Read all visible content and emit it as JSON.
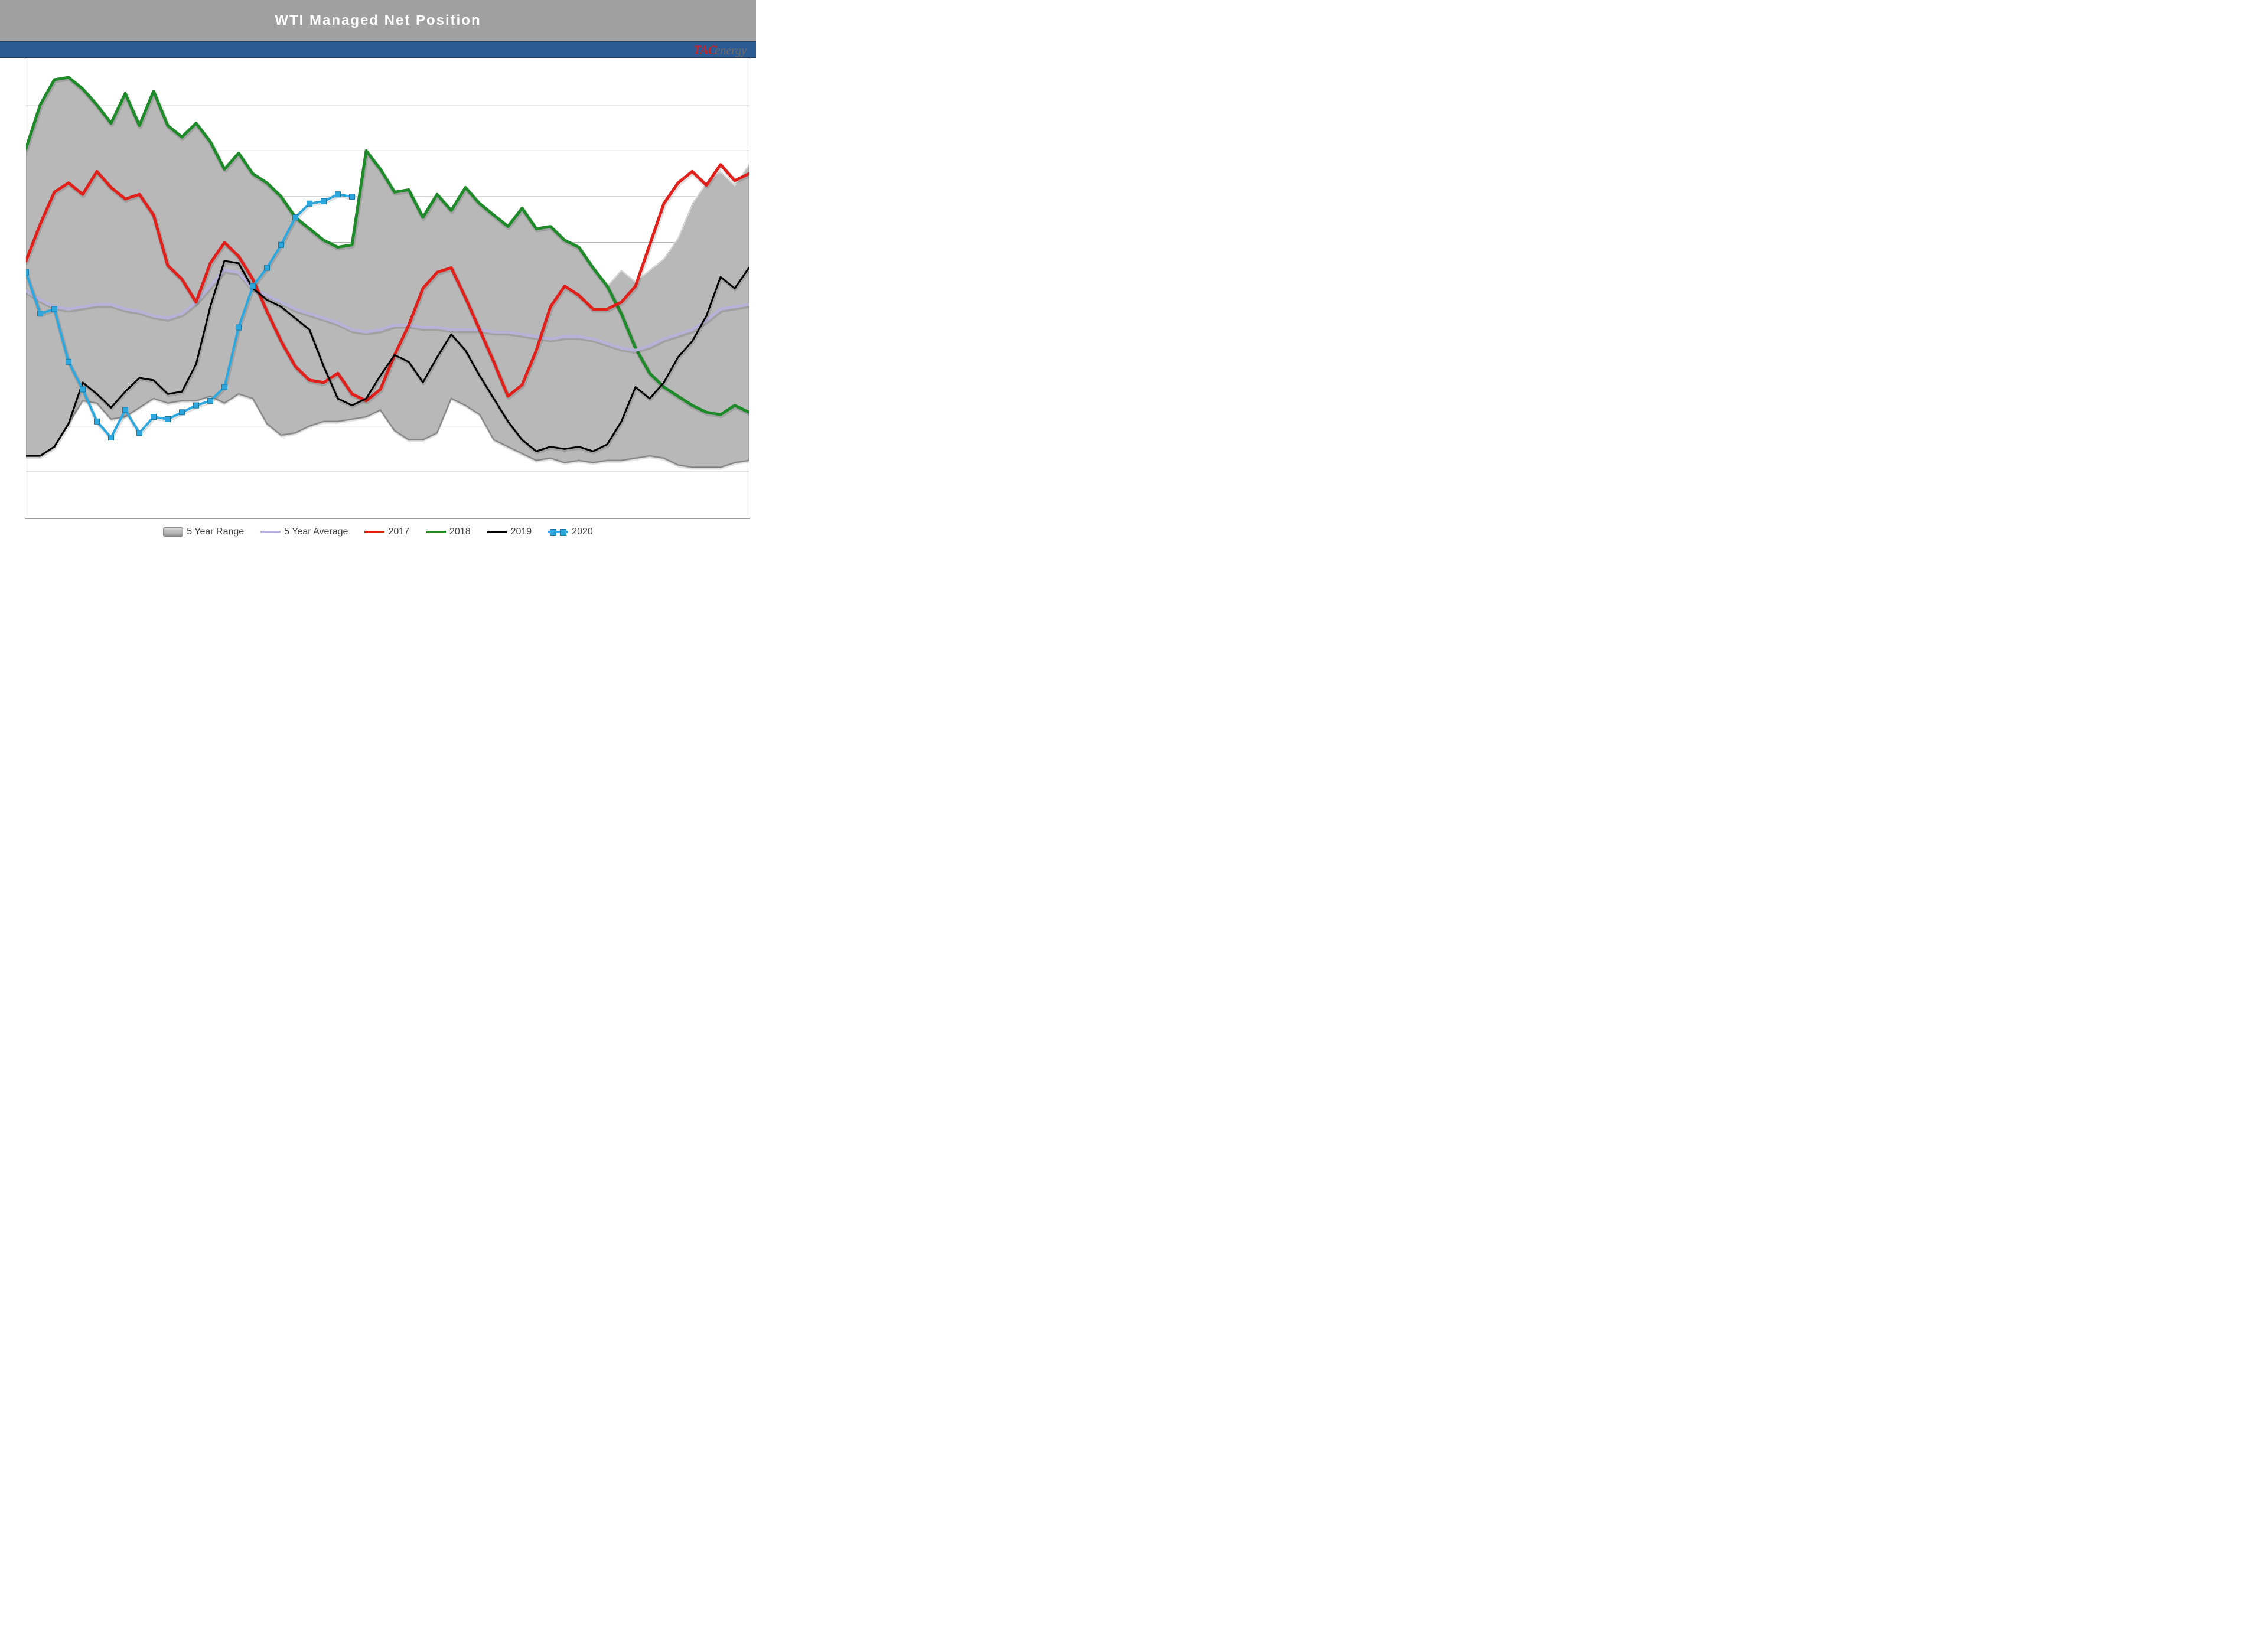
{
  "title": "WTI Managed Net Position",
  "logo": {
    "tac": "TAC",
    "energy": "energy"
  },
  "chart": {
    "type": "line",
    "background_color": "#ffffff",
    "title_bar_color": "#a0a0a0",
    "title_font_color": "#ffffff",
    "title_fontsize": 24,
    "strip_color": "#2c5b94",
    "plot_border_color": "#9a9a9a",
    "grid_color": "#9a9a9a",
    "x_points": 52,
    "ylim": [
      0,
      10
    ],
    "y_gridlines": [
      1,
      2,
      3,
      4,
      5,
      6,
      7,
      8,
      9
    ],
    "range_fill": "#b8b8b8",
    "range_edge": "#8a8a8a",
    "series": {
      "range_upper": [
        8.05,
        9.0,
        9.55,
        9.6,
        9.35,
        9.0,
        8.6,
        9.25,
        8.55,
        9.3,
        8.55,
        8.3,
        8.6,
        8.2,
        7.6,
        7.95,
        7.5,
        7.3,
        7.0,
        6.55,
        6.3,
        6.05,
        5.9,
        5.95,
        8.0,
        7.6,
        7.1,
        7.15,
        6.55,
        7.05,
        6.7,
        7.2,
        6.85,
        6.6,
        6.35,
        6.75,
        6.3,
        6.35,
        6.05,
        5.9,
        5.45,
        5.05,
        5.4,
        5.15,
        5.4,
        5.65,
        6.1,
        6.85,
        7.3,
        7.55,
        7.25,
        7.7
      ],
      "range_lower": [
        1.35,
        1.35,
        1.55,
        2.05,
        2.55,
        2.5,
        2.15,
        2.2,
        2.4,
        2.6,
        2.5,
        2.55,
        2.55,
        2.65,
        2.5,
        2.7,
        2.6,
        2.05,
        1.8,
        1.85,
        2.0,
        2.1,
        2.1,
        2.15,
        2.2,
        2.35,
        1.9,
        1.7,
        1.7,
        1.85,
        2.6,
        2.45,
        2.25,
        1.7,
        1.55,
        1.4,
        1.25,
        1.3,
        1.2,
        1.25,
        1.2,
        1.25,
        1.25,
        1.3,
        1.35,
        1.3,
        1.15,
        1.1,
        1.1,
        1.1,
        1.2,
        1.25
      ],
      "average": {
        "color": "#b6b2d8",
        "width": 5,
        "values": [
          4.95,
          4.75,
          4.6,
          4.55,
          4.6,
          4.65,
          4.65,
          4.55,
          4.5,
          4.4,
          4.35,
          4.45,
          4.7,
          5.05,
          5.4,
          5.35,
          5.0,
          4.85,
          4.7,
          4.55,
          4.45,
          4.35,
          4.25,
          4.1,
          4.05,
          4.1,
          4.2,
          4.2,
          4.15,
          4.15,
          4.1,
          4.1,
          4.1,
          4.05,
          4.05,
          4.0,
          3.95,
          3.9,
          3.95,
          3.95,
          3.9,
          3.8,
          3.7,
          3.65,
          3.75,
          3.9,
          4.0,
          4.1,
          4.3,
          4.55,
          4.6,
          4.65
        ]
      },
      "y2017": {
        "color": "#e1201b",
        "width": 5,
        "values": [
          5.6,
          6.4,
          7.1,
          7.3,
          7.05,
          7.55,
          7.2,
          6.95,
          7.05,
          6.6,
          5.5,
          5.2,
          4.7,
          5.55,
          6.0,
          5.7,
          5.2,
          4.5,
          3.85,
          3.3,
          3.0,
          2.95,
          3.15,
          2.7,
          2.55,
          2.8,
          3.55,
          4.2,
          5.0,
          5.35,
          5.45,
          4.8,
          4.1,
          3.4,
          2.65,
          2.9,
          3.65,
          4.6,
          5.05,
          4.85,
          4.55,
          4.55,
          4.7,
          5.05,
          5.95,
          6.85,
          7.3,
          7.55,
          7.25,
          7.7,
          7.35,
          7.5
        ]
      },
      "y2018": {
        "color": "#1f8a2a",
        "width": 5,
        "values": [
          8.05,
          9.0,
          9.55,
          9.6,
          9.35,
          9.0,
          8.6,
          9.25,
          8.55,
          9.3,
          8.55,
          8.3,
          8.6,
          8.2,
          7.6,
          7.95,
          7.5,
          7.3,
          7.0,
          6.55,
          6.3,
          6.05,
          5.9,
          5.95,
          8.0,
          7.6,
          7.1,
          7.15,
          6.55,
          7.05,
          6.7,
          7.2,
          6.85,
          6.6,
          6.35,
          6.75,
          6.3,
          6.35,
          6.05,
          5.9,
          5.45,
          5.05,
          4.45,
          3.7,
          3.15,
          2.85,
          2.65,
          2.45,
          2.3,
          2.25,
          2.45,
          2.3
        ]
      },
      "y2019": {
        "color": "#000000",
        "width": 3,
        "values": [
          1.35,
          1.35,
          1.55,
          2.05,
          2.95,
          2.7,
          2.4,
          2.75,
          3.05,
          3.0,
          2.7,
          2.75,
          3.35,
          4.6,
          5.6,
          5.55,
          5.0,
          4.75,
          4.6,
          4.35,
          4.1,
          3.3,
          2.6,
          2.45,
          2.6,
          3.1,
          3.55,
          3.4,
          2.95,
          3.5,
          4.0,
          3.65,
          3.1,
          2.6,
          2.1,
          1.7,
          1.45,
          1.55,
          1.5,
          1.55,
          1.45,
          1.6,
          2.1,
          2.85,
          2.6,
          2.95,
          3.5,
          3.85,
          4.4,
          5.25,
          5.0,
          5.45
        ]
      },
      "y2020": {
        "color": "#2ca8df",
        "width": 4,
        "marker": "square",
        "marker_size": 9,
        "marker_fill": "#2ca8df",
        "marker_border": "#1a7aa6",
        "values": [
          5.35,
          4.45,
          4.55,
          3.4,
          2.8,
          2.1,
          1.75,
          2.35,
          1.85,
          2.2,
          2.15,
          2.3,
          2.45,
          2.55,
          2.85,
          4.15,
          5.05,
          5.45,
          5.95,
          6.55,
          6.85,
          6.9,
          7.05,
          7.0
        ]
      }
    }
  },
  "legend": {
    "items": [
      {
        "key": "range",
        "label": "5 Year Range"
      },
      {
        "key": "average",
        "label": "5 Year Average"
      },
      {
        "key": "y2017",
        "label": "2017"
      },
      {
        "key": "y2018",
        "label": "2018"
      },
      {
        "key": "y2019",
        "label": "2019"
      },
      {
        "key": "y2020",
        "label": "2020"
      }
    ]
  }
}
